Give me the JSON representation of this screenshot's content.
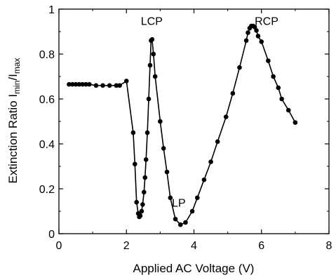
{
  "chart_data": {
    "type": "scatter",
    "title": "",
    "xlabel": "Applied AC Voltage (V)",
    "ylabel_main": "Extinction Ratio I",
    "ylabel_sub1": "min",
    "ylabel_mid": "/I",
    "ylabel_sub2": "max",
    "xlim": [
      0,
      8
    ],
    "ylim": [
      0,
      1
    ],
    "xticks": [
      "0",
      "2",
      "4",
      "6",
      "8"
    ],
    "yticks": [
      "0",
      "0.2",
      "0.4",
      "0.6",
      "0.8",
      "1"
    ],
    "grid": false,
    "line_connected": true,
    "marker": "filled-circle",
    "color": "#000000",
    "annotations": [
      {
        "label": "LCP",
        "x": 2.75,
        "y": 0.93
      },
      {
        "label": "LP",
        "x": 3.55,
        "y": 0.12
      },
      {
        "label": "RCP",
        "x": 6.15,
        "y": 0.93
      }
    ],
    "series": [
      {
        "values": [
          [
            0.3,
            0.665
          ],
          [
            0.4,
            0.665
          ],
          [
            0.5,
            0.665
          ],
          [
            0.6,
            0.665
          ],
          [
            0.7,
            0.665
          ],
          [
            0.8,
            0.665
          ],
          [
            0.9,
            0.665
          ],
          [
            1.1,
            0.66
          ],
          [
            1.3,
            0.66
          ],
          [
            1.5,
            0.66
          ],
          [
            1.7,
            0.66
          ],
          [
            1.8,
            0.66
          ],
          [
            2.0,
            0.68
          ],
          [
            2.2,
            0.45
          ],
          [
            2.25,
            0.31
          ],
          [
            2.3,
            0.14
          ],
          [
            2.35,
            0.09
          ],
          [
            2.38,
            0.075
          ],
          [
            2.41,
            0.08
          ],
          [
            2.45,
            0.1
          ],
          [
            2.48,
            0.13
          ],
          [
            2.52,
            0.185
          ],
          [
            2.55,
            0.25
          ],
          [
            2.58,
            0.33
          ],
          [
            2.62,
            0.45
          ],
          [
            2.66,
            0.6
          ],
          [
            2.7,
            0.75
          ],
          [
            2.73,
            0.86
          ],
          [
            2.76,
            0.865
          ],
          [
            2.8,
            0.8
          ],
          [
            2.85,
            0.7
          ],
          [
            3.0,
            0.5
          ],
          [
            3.1,
            0.38
          ],
          [
            3.2,
            0.275
          ],
          [
            3.3,
            0.16
          ],
          [
            3.45,
            0.065
          ],
          [
            3.6,
            0.04
          ],
          [
            3.75,
            0.05
          ],
          [
            3.95,
            0.1
          ],
          [
            4.1,
            0.16
          ],
          [
            4.3,
            0.24
          ],
          [
            4.5,
            0.32
          ],
          [
            4.7,
            0.41
          ],
          [
            4.95,
            0.52
          ],
          [
            5.15,
            0.625
          ],
          [
            5.35,
            0.74
          ],
          [
            5.55,
            0.86
          ],
          [
            5.6,
            0.895
          ],
          [
            5.65,
            0.915
          ],
          [
            5.7,
            0.925
          ],
          [
            5.75,
            0.925
          ],
          [
            5.8,
            0.92
          ],
          [
            5.85,
            0.905
          ],
          [
            5.9,
            0.88
          ],
          [
            6.0,
            0.855
          ],
          [
            6.2,
            0.77
          ],
          [
            6.35,
            0.7
          ],
          [
            6.5,
            0.65
          ],
          [
            6.6,
            0.6
          ],
          [
            6.8,
            0.55
          ],
          [
            7.0,
            0.495
          ]
        ]
      }
    ]
  }
}
